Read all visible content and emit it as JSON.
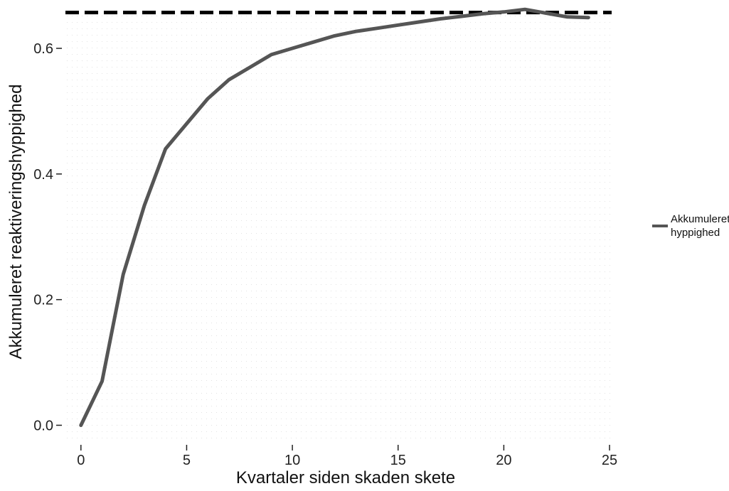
{
  "chart_data": {
    "type": "line",
    "title": "",
    "xlabel": "Kvartaler siden skaden skete",
    "ylabel": "Akkumuleret reaktiveringshyppighed",
    "xlim": [
      -0.8,
      25.1
    ],
    "ylim": [
      -0.03,
      0.66
    ],
    "x_ticks": [
      0,
      5,
      10,
      15,
      20,
      25
    ],
    "x_tick_labels": [
      "0",
      "5",
      "10",
      "15",
      "20",
      "25"
    ],
    "y_ticks": [
      0.0,
      0.2,
      0.4,
      0.6
    ],
    "y_tick_labels": [
      "0.0",
      "0.2",
      "0.4",
      "0.6"
    ],
    "grid": false,
    "legend_position": "right",
    "legend": [
      "Akkumuleret",
      "hyppighed"
    ],
    "series": [
      {
        "name": "Akkumuleret hyppighed",
        "color": "#555555",
        "x": [
          0,
          1,
          2,
          3,
          4,
          5,
          6,
          7,
          8,
          9,
          10,
          11,
          12,
          13,
          14,
          15,
          16,
          17,
          18,
          19,
          20,
          21,
          22,
          23,
          24
        ],
        "y": [
          0.0,
          0.07,
          0.24,
          0.35,
          0.44,
          0.48,
          0.52,
          0.55,
          0.57,
          0.59,
          0.6,
          0.61,
          0.62,
          0.627,
          0.632,
          0.637,
          0.642,
          0.647,
          0.651,
          0.655,
          0.658,
          0.662,
          0.656,
          0.65,
          0.649
        ]
      }
    ],
    "reference_line": {
      "y": 0.657,
      "style": "dashed",
      "color": "#000000"
    }
  }
}
